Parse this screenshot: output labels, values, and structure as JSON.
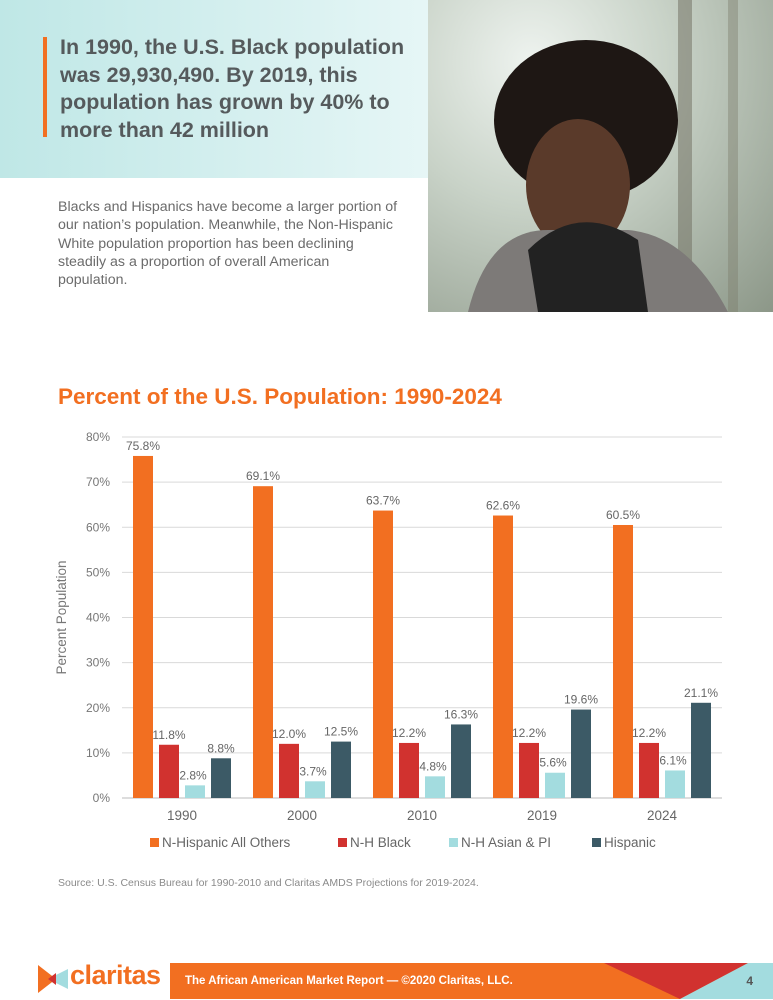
{
  "hero": {
    "headline": "In 1990, the U.S. Black population was 29,930,490. By 2019, this population has grown by 40% to more than 42 million"
  },
  "intro": {
    "text": "Blacks and Hispanics have become a larger portion of our nation’s population. Meanwhile, the Non-Hispanic White population proportion has been declining steadily as a proportion of overall American population."
  },
  "colors": {
    "accent": "#f26f21",
    "black_series": "#d1322f",
    "asian_series": "#a3dcdf",
    "hispanic_series": "#3c5a66"
  },
  "chart_data": {
    "type": "bar",
    "title": "Percent of the U.S. Population: 1990-2024",
    "ylabel": "Percent Population",
    "xlabel": "",
    "ylim": [
      0,
      80
    ],
    "yticks": [
      "0%",
      "10%",
      "20%",
      "30%",
      "40%",
      "50%",
      "60%",
      "70%",
      "80%"
    ],
    "grid": true,
    "legend_placement": "bottom",
    "categories": [
      "1990",
      "2000",
      "2010",
      "2019",
      "2024"
    ],
    "series": [
      {
        "name": "N-Hispanic All Others",
        "color": "#f26f21",
        "values": [
          75.8,
          69.1,
          63.7,
          62.6,
          60.5
        ],
        "labels": [
          "75.8%",
          "69.1%",
          "63.7%",
          "62.6%",
          "60.5%"
        ]
      },
      {
        "name": "N-H Black",
        "color": "#d1322f",
        "values": [
          11.8,
          12.0,
          12.2,
          12.2,
          12.2
        ],
        "labels": [
          "11.8%",
          "12.0%",
          "12.2%",
          "12.2%",
          "12.2%"
        ]
      },
      {
        "name": "N-H Asian & PI",
        "color": "#a3dcdf",
        "values": [
          2.8,
          3.7,
          4.8,
          5.6,
          6.1
        ],
        "labels": [
          "2.8%",
          "3.7%",
          "4.8%",
          "5.6%",
          "6.1%"
        ]
      },
      {
        "name": "Hispanic",
        "color": "#3c5a66",
        "values": [
          8.8,
          12.5,
          16.3,
          19.6,
          21.1
        ],
        "labels": [
          "8.8%",
          "12.5%",
          "16.3%",
          "19.6%",
          "21.1%"
        ]
      }
    ]
  },
  "source": "Source: U.S. Census Bureau for 1990-2010 and Claritas AMDS Projections for 2019-2024.",
  "footer": {
    "logo": "claritas",
    "text": "The African American Market Report — ©2020 Claritas, LLC.",
    "page": "4"
  }
}
